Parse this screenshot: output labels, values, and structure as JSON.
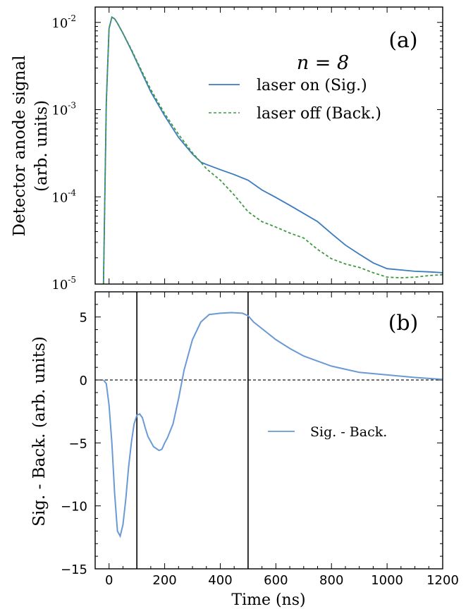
{
  "chart_data": [
    {
      "type": "line",
      "panel_label": "(a)",
      "annotation": "n = 8",
      "ylabel_line1": "Detector anode signal",
      "ylabel_line2": "(arb. units)",
      "yscale": "log",
      "xlim": [
        -50,
        1200
      ],
      "ylim": [
        1e-05,
        0.015
      ],
      "yticks": [
        {
          "value": 1e-05,
          "mantissa": "10",
          "exp": "-5"
        },
        {
          "value": 0.0001,
          "mantissa": "10",
          "exp": "-4"
        },
        {
          "value": 0.001,
          "mantissa": "10",
          "exp": "-3"
        },
        {
          "value": 0.01,
          "mantissa": "10",
          "exp": "-2"
        }
      ],
      "legend_position": "upper-right",
      "series": [
        {
          "name": "laser on (Sig.)",
          "color": "#3b7bbf",
          "style": "solid",
          "x": [
            -20,
            -10,
            0,
            10,
            20,
            30,
            50,
            80,
            100,
            150,
            200,
            250,
            300,
            330,
            350,
            400,
            450,
            500,
            550,
            600,
            650,
            700,
            750,
            800,
            850,
            900,
            950,
            1000,
            1050,
            1100,
            1150,
            1200
          ],
          "y": [
            8e-06,
            0.0012,
            0.0085,
            0.0115,
            0.011,
            0.0098,
            0.0075,
            0.0048,
            0.0035,
            0.0016,
            0.00085,
            0.00048,
            0.00031,
            0.00025,
            0.000235,
            0.000205,
            0.00018,
            0.000155,
            0.00012,
            9.82e-05,
            8e-05,
            6.45e-05,
            5.2e-05,
            3.8e-05,
            2.8e-05,
            2.2e-05,
            1.75e-05,
            1.5e-05,
            1.45e-05,
            1.4e-05,
            1.38e-05,
            1.35e-05
          ]
        },
        {
          "name": "laser off (Back.)",
          "color": "#3f9a3f",
          "style": "dashed",
          "x": [
            -20,
            -10,
            0,
            10,
            20,
            30,
            50,
            80,
            100,
            150,
            200,
            250,
            300,
            330,
            350,
            400,
            450,
            500,
            550,
            600,
            650,
            700,
            750,
            800,
            850,
            900,
            950,
            1000,
            1050,
            1100,
            1150,
            1200
          ],
          "y": [
            8e-06,
            0.0012,
            0.0085,
            0.0115,
            0.011,
            0.0098,
            0.0075,
            0.0049,
            0.0036,
            0.0017,
            0.0009,
            0.00052,
            0.00032,
            0.00025,
            0.00021,
            0.000155,
            0.000105,
            6.75e-05,
            5.2e-05,
            4.5e-05,
            3.85e-05,
            3.37e-05,
            2.5e-05,
            1.95e-05,
            1.7e-05,
            1.55e-05,
            1.35e-05,
            1.2e-05,
            1.18e-05,
            1.2e-05,
            1.25e-05,
            1.28e-05
          ]
        }
      ]
    },
    {
      "type": "line",
      "panel_label": "(b)",
      "xlabel": "Time (ns)",
      "ylabel": "Sig. - Back. (arb. units)",
      "xlim": [
        -50,
        1200
      ],
      "ylim": [
        -15,
        7
      ],
      "xticks": [
        0,
        200,
        400,
        600,
        800,
        1000,
        1200
      ],
      "yticks": [
        -15,
        -10,
        -5,
        0,
        5
      ],
      "vertical_lines_x": [
        100,
        500
      ],
      "zero_line": true,
      "legend_position": "center-right",
      "series": [
        {
          "name": "Sig. - Back.",
          "color": "#6a9ad6",
          "style": "solid",
          "x": [
            -20,
            -10,
            0,
            10,
            20,
            30,
            40,
            50,
            60,
            70,
            80,
            90,
            100,
            110,
            120,
            130,
            140,
            160,
            180,
            190,
            200,
            210,
            230,
            250,
            270,
            300,
            330,
            360,
            400,
            440,
            480,
            500,
            520,
            560,
            600,
            650,
            700,
            750,
            800,
            850,
            900,
            1000,
            1100,
            1200
          ],
          "y": [
            0,
            -0.3,
            -2,
            -5,
            -9,
            -12,
            -12.4,
            -11.5,
            -9.5,
            -7,
            -5,
            -3.5,
            -2.8,
            -2.7,
            -3,
            -3.8,
            -4.5,
            -5.3,
            -5.6,
            -5.5,
            -5,
            -4.6,
            -3.5,
            -1.5,
            0.8,
            3.2,
            4.6,
            5.2,
            5.3,
            5.35,
            5.3,
            5.1,
            4.6,
            3.9,
            3.2,
            2.5,
            1.9,
            1.5,
            1.1,
            0.85,
            0.6,
            0.4,
            0.2,
            0.05
          ]
        }
      ]
    }
  ]
}
